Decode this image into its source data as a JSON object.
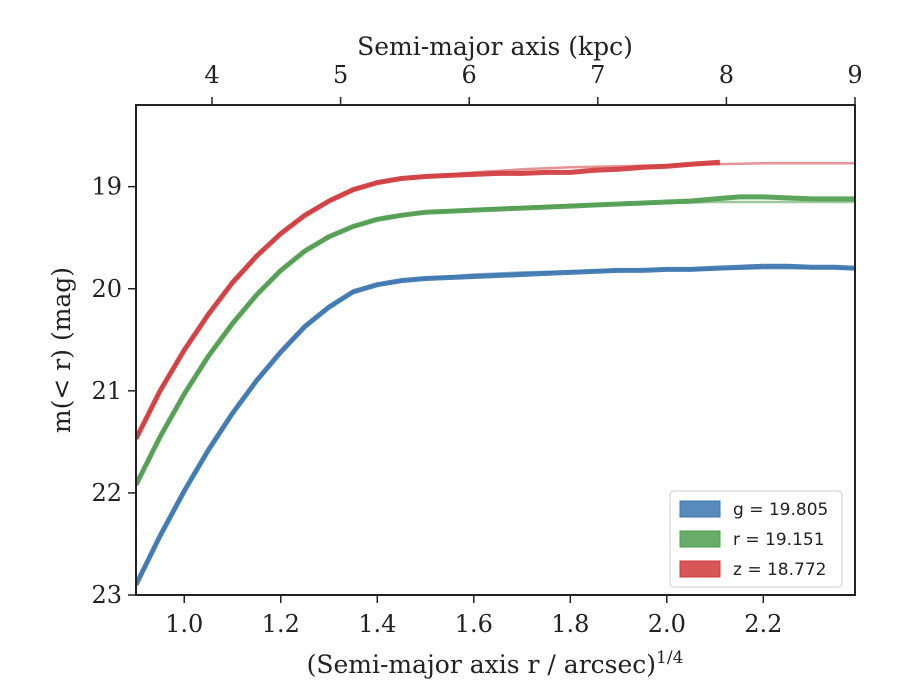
{
  "chart_data": {
    "type": "line",
    "xlabel_bottom": "(Semi-major axis r / arcsec)",
    "xlabel_bottom_sup": "1/4",
    "xlabel_top": "Semi-major axis (kpc)",
    "ylabel": "m(< r) (mag)",
    "xlim": [
      0.9,
      2.39
    ],
    "ylim": [
      23.0,
      18.2
    ],
    "y_inverted": true,
    "x_ticks": [
      1.0,
      1.2,
      1.4,
      1.6,
      1.8,
      2.0,
      2.2
    ],
    "x_tick_labels": [
      "1.0",
      "1.2",
      "1.4",
      "1.6",
      "1.8",
      "2.0",
      "2.2"
    ],
    "y_ticks": [
      19,
      20,
      21,
      22,
      23
    ],
    "y_tick_labels": [
      "19",
      "20",
      "21",
      "22",
      "23"
    ],
    "top_ticks_kpc": [
      4,
      5,
      6,
      7,
      8,
      9
    ],
    "top_tick_labels": [
      "4",
      "5",
      "6",
      "7",
      "8",
      "9"
    ],
    "grid": false,
    "legend_position": "lower-right",
    "series": [
      {
        "name": "g = 19.805",
        "band": "g",
        "total_mag": "19.805",
        "color": "#3b75af",
        "x": [
          0.9,
          0.95,
          1.0,
          1.05,
          1.1,
          1.15,
          1.2,
          1.25,
          1.3,
          1.35,
          1.4,
          1.45,
          1.5,
          1.55,
          1.6,
          1.65,
          1.7,
          1.75,
          1.8,
          1.85,
          1.9,
          1.95,
          2.0,
          2.05,
          2.1,
          2.15,
          2.2,
          2.25,
          2.3,
          2.35,
          2.39
        ],
        "y": [
          22.9,
          22.42,
          21.98,
          21.58,
          21.22,
          20.9,
          20.62,
          20.37,
          20.18,
          20.03,
          19.96,
          19.92,
          19.9,
          19.89,
          19.88,
          19.87,
          19.86,
          19.85,
          19.84,
          19.83,
          19.82,
          19.82,
          19.81,
          19.81,
          19.8,
          19.79,
          19.78,
          19.78,
          19.79,
          19.79,
          19.8
        ],
        "fit_x": [
          0.9,
          0.95,
          1.0,
          1.05,
          1.1,
          1.15,
          1.2,
          1.25,
          1.3,
          1.35,
          1.4,
          1.45,
          1.5,
          1.6,
          1.7,
          1.8,
          1.9,
          2.0,
          2.1,
          2.2,
          2.3,
          2.39
        ],
        "fit_y": [
          22.9,
          22.42,
          21.98,
          21.58,
          21.22,
          20.9,
          20.62,
          20.37,
          20.18,
          20.03,
          19.96,
          19.92,
          19.9,
          19.86,
          19.84,
          19.83,
          19.82,
          19.81,
          19.81,
          19.8,
          19.8,
          19.8
        ]
      },
      {
        "name": "r = 19.151",
        "band": "r",
        "total_mag": "19.151",
        "color": "#4f9c4f",
        "x": [
          0.9,
          0.95,
          1.0,
          1.05,
          1.1,
          1.15,
          1.2,
          1.25,
          1.3,
          1.35,
          1.4,
          1.45,
          1.5,
          1.55,
          1.6,
          1.65,
          1.7,
          1.75,
          1.8,
          1.85,
          1.9,
          1.95,
          2.0,
          2.05,
          2.1,
          2.15,
          2.2,
          2.25,
          2.3,
          2.35,
          2.39
        ],
        "y": [
          21.92,
          21.45,
          21.03,
          20.66,
          20.34,
          20.06,
          19.82,
          19.63,
          19.49,
          19.39,
          19.32,
          19.28,
          19.25,
          19.24,
          19.23,
          19.22,
          19.21,
          19.2,
          19.19,
          19.18,
          19.17,
          19.16,
          19.15,
          19.14,
          19.12,
          19.1,
          19.1,
          19.11,
          19.12,
          19.12,
          19.12
        ],
        "fit_x": [
          0.9,
          0.95,
          1.0,
          1.05,
          1.1,
          1.15,
          1.2,
          1.25,
          1.3,
          1.35,
          1.4,
          1.45,
          1.5,
          1.6,
          1.7,
          1.8,
          1.9,
          2.0,
          2.1,
          2.2,
          2.3,
          2.39
        ],
        "fit_y": [
          21.92,
          21.45,
          21.03,
          20.66,
          20.34,
          20.06,
          19.82,
          19.63,
          19.49,
          19.39,
          19.32,
          19.28,
          19.25,
          19.22,
          19.2,
          19.18,
          19.17,
          19.16,
          19.15,
          19.15,
          19.15,
          19.15
        ]
      },
      {
        "name": "z = 18.772",
        "band": "z",
        "total_mag": "18.772",
        "color": "#d03a3c",
        "x": [
          0.9,
          0.95,
          1.0,
          1.05,
          1.1,
          1.15,
          1.2,
          1.25,
          1.3,
          1.35,
          1.4,
          1.45,
          1.5,
          1.55,
          1.6,
          1.65,
          1.7,
          1.75,
          1.8,
          1.85,
          1.9,
          1.95,
          2.0,
          2.05,
          2.11
        ],
        "y": [
          21.47,
          21.0,
          20.6,
          20.25,
          19.94,
          19.68,
          19.46,
          19.28,
          19.14,
          19.03,
          18.96,
          18.92,
          18.9,
          18.89,
          18.88,
          18.87,
          18.87,
          18.86,
          18.86,
          18.84,
          18.83,
          18.81,
          18.8,
          18.78,
          18.76
        ],
        "fit_x": [
          0.9,
          0.95,
          1.0,
          1.05,
          1.1,
          1.15,
          1.2,
          1.25,
          1.3,
          1.35,
          1.4,
          1.45,
          1.5,
          1.6,
          1.7,
          1.8,
          1.9,
          2.0,
          2.1,
          2.2,
          2.3,
          2.39
        ],
        "fit_y": [
          21.47,
          21.0,
          20.6,
          20.25,
          19.94,
          19.68,
          19.46,
          19.28,
          19.14,
          19.03,
          18.96,
          18.92,
          18.9,
          18.86,
          18.83,
          18.81,
          18.8,
          18.79,
          18.78,
          18.77,
          18.77,
          18.77
        ]
      }
    ]
  }
}
